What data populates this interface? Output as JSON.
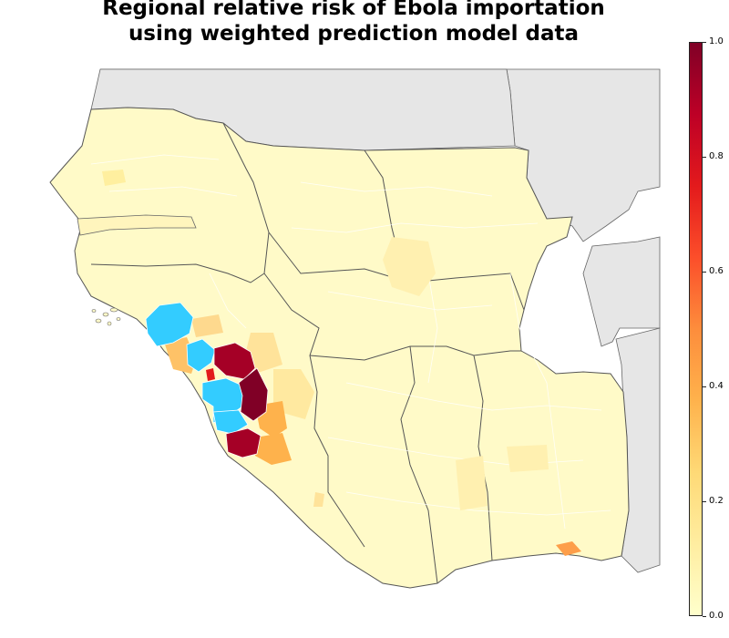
{
  "title": {
    "line1": "Regional relative risk of Ebola importation",
    "line2": "using weighted prediction model data"
  },
  "colors": {
    "background_land": "#e6e6e6",
    "base_region": "#fffac8",
    "border_outline": "#555555",
    "admin_border": "#ffffff",
    "ebola_affected": "#33ccff",
    "high_risk": "#a50026",
    "highest_risk": "#800026",
    "medium_high": "#e31a1c",
    "medium": "#fd9e4a",
    "medium_low": "#fed98e",
    "low": "#fff0b3"
  },
  "colorbar": {
    "ticks": [
      "0.0",
      "0.2",
      "0.4",
      "0.6",
      "0.8",
      "1.0"
    ],
    "scale": "YlOrRd",
    "range": [
      0.0,
      1.0
    ]
  }
}
